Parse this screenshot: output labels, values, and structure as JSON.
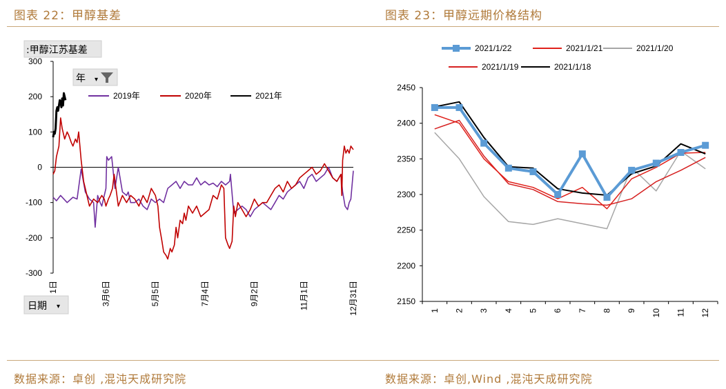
{
  "left": {
    "figure_title": "图表 22：甲醇基差",
    "source": "数据来源：卓创 ,混沌天成研究院",
    "series_button": ":甲醇江苏基差",
    "year_button": "年",
    "date_button": "日期"
  },
  "right": {
    "figure_title": "图表 23：甲醇远期价格结构",
    "source": "数据来源：卓创,Wind ,混沌天成研究院"
  },
  "colors": {
    "accent": "#b07a3a",
    "s2019": "#7030a0",
    "s2020": "#c00000",
    "s2021": "#000000",
    "s0122": "#5b9bd5",
    "s0121": "#e0201a",
    "s0120": "#a6a6a6",
    "s0119": "#d62020",
    "s0118": "#000000"
  },
  "chart_data": [
    {
      "type": "line",
      "title": "",
      "xlabel": "",
      "ylabel": "",
      "ylim": [
        -300,
        300
      ],
      "yticks": [
        300,
        200,
        100,
        0,
        -100,
        -200,
        -300
      ],
      "xticks": [
        {
          "label": "1日",
          "day": 1
        },
        {
          "label": "3月6日",
          "day": 65
        },
        {
          "label": "5月5日",
          "day": 125
        },
        {
          "label": "7月4日",
          "day": 185
        },
        {
          "label": "9月2日",
          "day": 245
        },
        {
          "label": "11月1日",
          "day": 305
        },
        {
          "label": "12月31日",
          "day": 365
        }
      ],
      "legend_position": "top",
      "series": [
        {
          "name": "2019年",
          "color_key": "s2019",
          "x": [
            1,
            5,
            10,
            18,
            25,
            30,
            35,
            40,
            45,
            50,
            52,
            55,
            58,
            60,
            62,
            65,
            66,
            68,
            72,
            76,
            80,
            85,
            90,
            92,
            95,
            100,
            105,
            110,
            115,
            120,
            125,
            130,
            135,
            140,
            145,
            150,
            155,
            160,
            165,
            170,
            175,
            180,
            185,
            190,
            195,
            200,
            205,
            210,
            215,
            216,
            220,
            225,
            230,
            235,
            240,
            245,
            250,
            255,
            260,
            265,
            270,
            275,
            280,
            285,
            290,
            295,
            300,
            305,
            310,
            315,
            320,
            325,
            330,
            335,
            340,
            345,
            350,
            352,
            355,
            358,
            360,
            362,
            365
          ],
          "y": [
            -85,
            -95,
            -80,
            -100,
            -85,
            -90,
            -5,
            -70,
            -90,
            -100,
            -170,
            -80,
            -100,
            -110,
            -90,
            -60,
            30,
            20,
            30,
            -60,
            0,
            -70,
            -80,
            -70,
            -100,
            -100,
            -90,
            -110,
            -120,
            -90,
            -100,
            -90,
            -100,
            -60,
            -50,
            -40,
            -60,
            -40,
            -50,
            -50,
            -30,
            -50,
            -40,
            -50,
            -45,
            -55,
            -40,
            -50,
            -40,
            -20,
            -130,
            -120,
            -110,
            -120,
            -140,
            -120,
            -110,
            -100,
            -110,
            -120,
            -100,
            -80,
            -90,
            -70,
            -60,
            -50,
            -40,
            -60,
            -30,
            -20,
            -40,
            -30,
            -20,
            0,
            -30,
            -40,
            -20,
            -70,
            -110,
            -120,
            -100,
            -90,
            -10
          ]
        },
        {
          "name": "2020年",
          "color_key": "s2020",
          "x": [
            1,
            3,
            5,
            8,
            10,
            12,
            15,
            18,
            20,
            23,
            25,
            28,
            30,
            32,
            35,
            38,
            40,
            45,
            50,
            55,
            60,
            63,
            65,
            68,
            70,
            73,
            75,
            80,
            85,
            90,
            95,
            100,
            105,
            110,
            115,
            120,
            125,
            128,
            130,
            133,
            135,
            138,
            140,
            143,
            145,
            148,
            150,
            152,
            155,
            158,
            160,
            162,
            165,
            170,
            175,
            180,
            185,
            190,
            195,
            200,
            205,
            208,
            210,
            213,
            215,
            218,
            220,
            222,
            225,
            230,
            235,
            240,
            245,
            250,
            255,
            260,
            265,
            270,
            275,
            280,
            285,
            290,
            295,
            300,
            305,
            310,
            315,
            320,
            325,
            330,
            335,
            340,
            345,
            350,
            351,
            352,
            354,
            356,
            358,
            360,
            362,
            365
          ],
          "y": [
            -20,
            -10,
            30,
            60,
            140,
            110,
            80,
            100,
            90,
            70,
            60,
            80,
            70,
            100,
            20,
            -40,
            -60,
            -110,
            -90,
            -100,
            -80,
            -90,
            -110,
            -90,
            -80,
            -60,
            -20,
            -110,
            -80,
            -100,
            -80,
            -90,
            -110,
            -80,
            -100,
            -60,
            -80,
            -110,
            -170,
            -210,
            -240,
            -250,
            -260,
            -230,
            -240,
            -220,
            -170,
            -200,
            -150,
            -160,
            -130,
            -150,
            -110,
            -130,
            -110,
            -140,
            -130,
            -120,
            -80,
            -90,
            -50,
            -60,
            -200,
            -220,
            -230,
            -210,
            -110,
            -140,
            -100,
            -120,
            -140,
            -120,
            -90,
            -110,
            -100,
            -100,
            -80,
            -60,
            -50,
            -70,
            -40,
            -60,
            -50,
            -30,
            -20,
            -10,
            0,
            -20,
            -10,
            10,
            -10,
            -30,
            -40,
            -20,
            -80,
            20,
            60,
            40,
            50,
            40,
            60,
            50
          ]
        },
        {
          "name": "2021年",
          "color_key": "s2021",
          "x": [
            1,
            2,
            3,
            4,
            5,
            6,
            7,
            8,
            9,
            10,
            11,
            12,
            13,
            14,
            15,
            16
          ],
          "y": [
            85,
            100,
            95,
            110,
            160,
            170,
            160,
            175,
            190,
            185,
            170,
            195,
            175,
            210,
            200,
            190
          ]
        }
      ]
    },
    {
      "type": "line",
      "title": "",
      "xlabel": "",
      "ylabel": "",
      "ylim": [
        2150,
        2450
      ],
      "yticks": [
        2450,
        2400,
        2350,
        2300,
        2250,
        2200,
        2150
      ],
      "categories": [
        "1",
        "2",
        "3",
        "4",
        "5",
        "6",
        "7",
        "8",
        "9",
        "10",
        "11",
        "12"
      ],
      "legend_position": "top",
      "series": [
        {
          "name": "2021/1/22",
          "color_key": "s0122",
          "marker": "square",
          "values": [
            2422,
            2422,
            2372,
            2337,
            2332,
            2300,
            2357,
            2296,
            2334,
            2344,
            2359,
            2369
          ]
        },
        {
          "name": "2021/1/21",
          "color_key": "s0121",
          "values": [
            2412,
            2400,
            2350,
            2318,
            2310,
            2294,
            2310,
            2280,
            2322,
            2338,
            2358,
            2359
          ]
        },
        {
          "name": "2021/1/20",
          "color_key": "s0120",
          "values": [
            2387,
            2350,
            2297,
            2262,
            2258,
            2266,
            2259,
            2252,
            2338,
            2305,
            2361,
            2336
          ]
        },
        {
          "name": "2021/1/19",
          "color_key": "s0119",
          "values": [
            2392,
            2404,
            2354,
            2315,
            2307,
            2290,
            2287,
            2285,
            2294,
            2318,
            2334,
            2352
          ]
        },
        {
          "name": "2021/1/18",
          "color_key": "s0118",
          "values": [
            2423,
            2430,
            2380,
            2339,
            2337,
            2308,
            2302,
            2299,
            2329,
            2340,
            2371,
            2357
          ]
        }
      ]
    }
  ]
}
